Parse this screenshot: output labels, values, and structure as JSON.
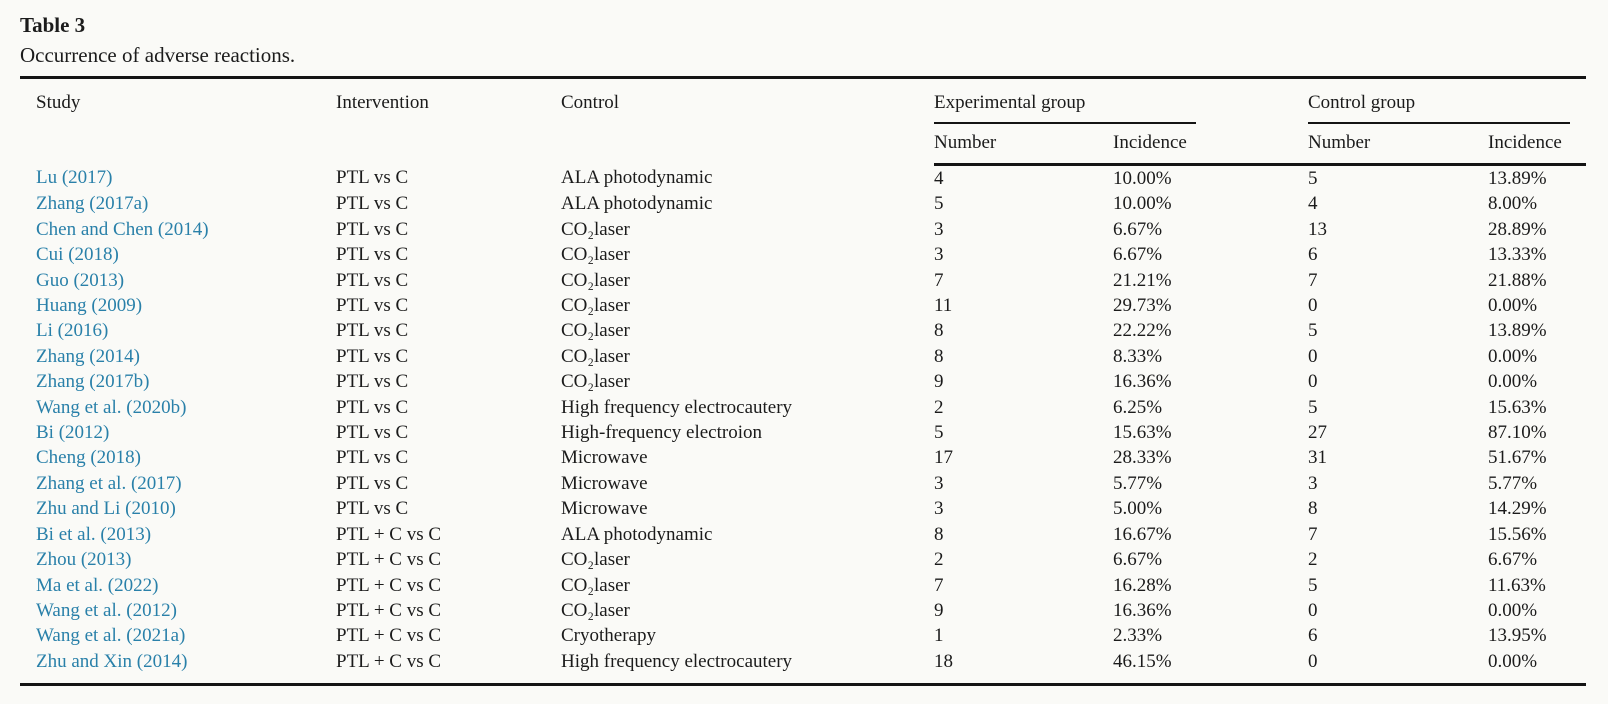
{
  "theme": {
    "background": "#fafaf7",
    "text_color": "#1b1b1b",
    "rule_color": "#141414",
    "link_color": "#2980a9"
  },
  "caption": {
    "label": "Table 3",
    "description": "Occurrence of adverse reactions."
  },
  "table": {
    "headers": {
      "study": "Study",
      "intervention": "Intervention",
      "control": "Control",
      "experimental_group": "Experimental group",
      "control_group": "Control group",
      "exp_number": "Number",
      "exp_incidence": "Incidence",
      "ctrl_number": "Number",
      "ctrl_incidence": "Incidence"
    },
    "rows": [
      {
        "study": "Lu (2017)",
        "intervention": "PTL vs C",
        "control": "ALA photodynamic",
        "exp_number": "4",
        "exp_incidence": "10.00%",
        "ctrl_number": "5",
        "ctrl_incidence": "13.89%"
      },
      {
        "study": "Zhang (2017a)",
        "intervention": "PTL vs C",
        "control": "ALA photodynamic",
        "exp_number": "5",
        "exp_incidence": "10.00%",
        "ctrl_number": "4",
        "ctrl_incidence": "8.00%"
      },
      {
        "study": "Chen and Chen (2014)",
        "intervention": "PTL vs C",
        "control": "CO₂laser",
        "exp_number": "3",
        "exp_incidence": "6.67%",
        "ctrl_number": "13",
        "ctrl_incidence": "28.89%"
      },
      {
        "study": "Cui (2018)",
        "intervention": "PTL vs C",
        "control": "CO₂laser",
        "exp_number": "3",
        "exp_incidence": "6.67%",
        "ctrl_number": "6",
        "ctrl_incidence": "13.33%"
      },
      {
        "study": "Guo (2013)",
        "intervention": "PTL vs C",
        "control": "CO₂laser",
        "exp_number": "7",
        "exp_incidence": "21.21%",
        "ctrl_number": "7",
        "ctrl_incidence": "21.88%"
      },
      {
        "study": "Huang (2009)",
        "intervention": "PTL vs C",
        "control": "CO₂laser",
        "exp_number": "11",
        "exp_incidence": "29.73%",
        "ctrl_number": "0",
        "ctrl_incidence": "0.00%"
      },
      {
        "study": "Li (2016)",
        "intervention": "PTL vs C",
        "control": "CO₂laser",
        "exp_number": "8",
        "exp_incidence": "22.22%",
        "ctrl_number": "5",
        "ctrl_incidence": "13.89%"
      },
      {
        "study": "Zhang (2014)",
        "intervention": "PTL vs C",
        "control": "CO₂laser",
        "exp_number": "8",
        "exp_incidence": "8.33%",
        "ctrl_number": "0",
        "ctrl_incidence": "0.00%"
      },
      {
        "study": "Zhang (2017b)",
        "intervention": "PTL vs C",
        "control": "CO₂laser",
        "exp_number": "9",
        "exp_incidence": "16.36%",
        "ctrl_number": "0",
        "ctrl_incidence": "0.00%"
      },
      {
        "study": "Wang et al. (2020b)",
        "intervention": "PTL vs C",
        "control": "High frequency electrocautery",
        "exp_number": "2",
        "exp_incidence": "6.25%",
        "ctrl_number": "5",
        "ctrl_incidence": "15.63%"
      },
      {
        "study": "Bi (2012)",
        "intervention": "PTL vs C",
        "control": "High-frequency electroion",
        "exp_number": "5",
        "exp_incidence": "15.63%",
        "ctrl_number": "27",
        "ctrl_incidence": "87.10%"
      },
      {
        "study": "Cheng (2018)",
        "intervention": "PTL vs C",
        "control": "Microwave",
        "exp_number": "17",
        "exp_incidence": "28.33%",
        "ctrl_number": "31",
        "ctrl_incidence": "51.67%"
      },
      {
        "study": "Zhang et al. (2017)",
        "intervention": "PTL vs C",
        "control": "Microwave",
        "exp_number": "3",
        "exp_incidence": "5.77%",
        "ctrl_number": "3",
        "ctrl_incidence": "5.77%"
      },
      {
        "study": "Zhu and Li (2010)",
        "intervention": "PTL vs C",
        "control": "Microwave",
        "exp_number": "3",
        "exp_incidence": "5.00%",
        "ctrl_number": "8",
        "ctrl_incidence": "14.29%"
      },
      {
        "study": "Bi et al. (2013)",
        "intervention": "PTL + C vs C",
        "control": "ALA photodynamic",
        "exp_number": "8",
        "exp_incidence": "16.67%",
        "ctrl_number": "7",
        "ctrl_incidence": "15.56%"
      },
      {
        "study": "Zhou (2013)",
        "intervention": "PTL + C vs C",
        "control": "CO₂laser",
        "exp_number": "2",
        "exp_incidence": "6.67%",
        "ctrl_number": "2",
        "ctrl_incidence": "6.67%"
      },
      {
        "study": "Ma et al. (2022)",
        "intervention": "PTL + C vs C",
        "control": "CO₂laser",
        "exp_number": "7",
        "exp_incidence": "16.28%",
        "ctrl_number": "5",
        "ctrl_incidence": "11.63%"
      },
      {
        "study": "Wang et al. (2012)",
        "intervention": "PTL + C vs C",
        "control": "CO₂laser",
        "exp_number": "9",
        "exp_incidence": "16.36%",
        "ctrl_number": "0",
        "ctrl_incidence": "0.00%"
      },
      {
        "study": "Wang et al. (2021a)",
        "intervention": "PTL + C vs C",
        "control": "Cryotherapy",
        "exp_number": "1",
        "exp_incidence": "2.33%",
        "ctrl_number": "6",
        "ctrl_incidence": "13.95%"
      },
      {
        "study": "Zhu and Xin (2014)",
        "intervention": "PTL + C vs C",
        "control": "High frequency electrocautery",
        "exp_number": "18",
        "exp_incidence": "46.15%",
        "ctrl_number": "0",
        "ctrl_incidence": "0.00%"
      }
    ]
  }
}
